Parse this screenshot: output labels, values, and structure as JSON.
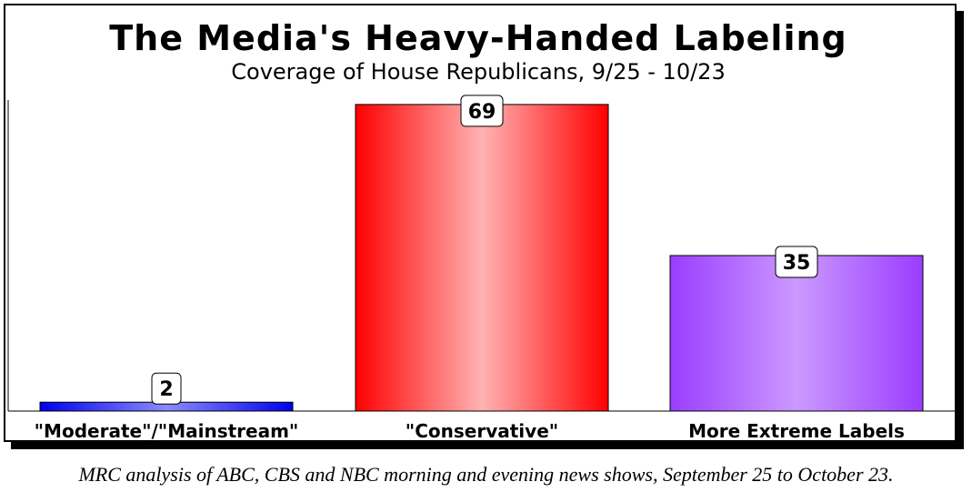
{
  "chart_data": {
    "type": "bar",
    "title": "The Media's Heavy-Handed Labeling",
    "subtitle": "Coverage of House Republicans, 9/25 - 10/23",
    "categories": [
      "\"Moderate\"/\"Mainstream\"",
      "\"Conservative\"",
      "More Extreme Labels"
    ],
    "values": [
      2,
      69,
      35
    ],
    "ylim": [
      0,
      70
    ],
    "grid": false,
    "bar_colors": [
      "#1a1aff",
      "#ff0000",
      "#9a3dff"
    ],
    "caption": "MRC analysis of ABC, CBS and NBC morning and evening news shows, September 25 to October 23."
  }
}
